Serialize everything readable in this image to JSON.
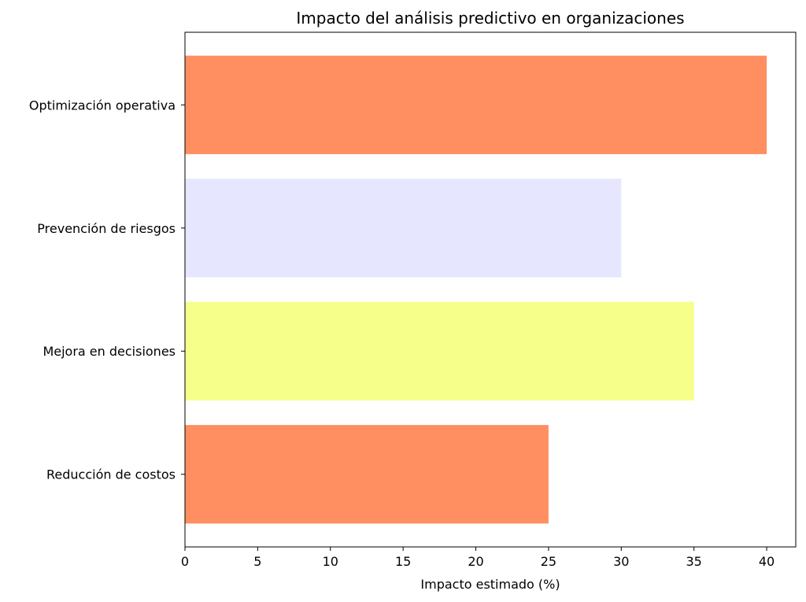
{
  "chart_data": {
    "type": "bar",
    "orientation": "horizontal",
    "title": "Impacto del análisis predictivo en organizaciones",
    "xlabel": "Impacto estimado (%)",
    "ylabel": "",
    "categories": [
      "Reducción de costos",
      "Mejora en decisiones",
      "Prevención de riesgos",
      "Optimización operativa"
    ],
    "values": [
      25,
      35,
      30,
      40
    ],
    "colors": [
      "#FF8F60",
      "#F5FF8A",
      "#E6E6FF",
      "#FF8F60"
    ],
    "xlim": [
      0,
      42
    ],
    "xticks": [
      0,
      5,
      10,
      15,
      20,
      25,
      30,
      35,
      40
    ],
    "grid": false,
    "legend": "none"
  }
}
